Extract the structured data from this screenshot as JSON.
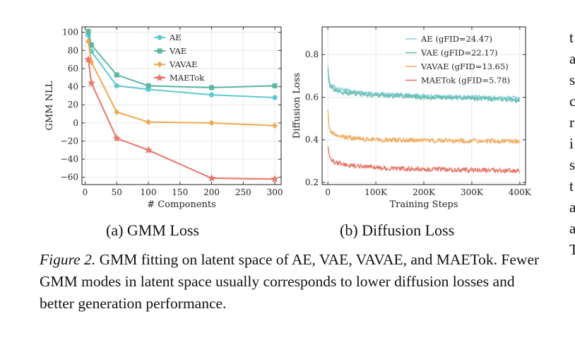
{
  "chart_data": [
    {
      "type": "line",
      "xlabel": "# Components",
      "ylabel": "GMM NLL",
      "xlim": [
        -5,
        310
      ],
      "ylim": [
        -68,
        106
      ],
      "xticks": [
        0,
        50,
        100,
        150,
        200,
        250,
        300
      ],
      "yticks": [
        -60,
        -40,
        -20,
        0,
        20,
        40,
        60,
        80,
        100
      ],
      "grid": true,
      "legend_position": "top-right",
      "series": [
        {
          "name": "AE",
          "color": "#5fc9d1",
          "marker": "circle",
          "x": [
            5,
            10,
            50,
            100,
            200,
            300
          ],
          "y": [
            97,
            79,
            41,
            37,
            31,
            28
          ]
        },
        {
          "name": "VAE",
          "color": "#5bb5a2",
          "marker": "square",
          "x": [
            5,
            10,
            50,
            100,
            200,
            300
          ],
          "y": [
            101,
            86,
            53,
            41,
            39,
            41
          ]
        },
        {
          "name": "VAVAE",
          "color": "#f0a94e",
          "marker": "diamond",
          "x": [
            5,
            10,
            50,
            100,
            200,
            300
          ],
          "y": [
            90,
            67,
            12,
            1,
            0,
            -3
          ]
        },
        {
          "name": "MAETok",
          "color": "#e8766a",
          "marker": "star",
          "x": [
            5,
            10,
            50,
            100,
            200,
            300
          ],
          "y": [
            70,
            44,
            -17,
            -30,
            -61,
            -62
          ]
        }
      ]
    },
    {
      "type": "line",
      "xlabel": "Training Steps",
      "ylabel": "Diffusion Loss",
      "xlim": [
        -12000,
        412000
      ],
      "ylim": [
        0.19,
        0.93
      ],
      "xticks": [
        0,
        100000,
        200000,
        300000,
        400000
      ],
      "xtick_labels": [
        "0",
        "100K",
        "200K",
        "300K",
        "400K"
      ],
      "yticks": [
        0.2,
        0.4,
        0.6,
        0.8
      ],
      "ytick_labels": [
        "0.2",
        "0.4",
        "0.6",
        "0.8"
      ],
      "grid": true,
      "legend_position": "top-right",
      "series": [
        {
          "name": "AE (gFID=24.47)",
          "color": "#87d2e3",
          "x": [
            0,
            2000,
            5000,
            10000,
            20000,
            40000,
            70000,
            100000,
            150000,
            200000,
            250000,
            300000,
            350000,
            400000
          ],
          "y": [
            0.76,
            0.69,
            0.66,
            0.65,
            0.64,
            0.63,
            0.62,
            0.615,
            0.61,
            0.605,
            0.6,
            0.6,
            0.598,
            0.595
          ]
        },
        {
          "name": "VAE (gFID=22.17)",
          "color": "#6cbfb2",
          "x": [
            0,
            2000,
            5000,
            10000,
            20000,
            40000,
            70000,
            100000,
            150000,
            200000,
            250000,
            300000,
            350000,
            400000
          ],
          "y": [
            0.74,
            0.68,
            0.65,
            0.64,
            0.63,
            0.62,
            0.615,
            0.61,
            0.605,
            0.6,
            0.598,
            0.595,
            0.59,
            0.585
          ]
        },
        {
          "name": "VAVAE (gFID=13.65)",
          "color": "#efae63",
          "x": [
            0,
            2000,
            5000,
            10000,
            20000,
            40000,
            70000,
            100000,
            150000,
            200000,
            250000,
            300000,
            350000,
            400000
          ],
          "y": [
            0.55,
            0.47,
            0.44,
            0.43,
            0.42,
            0.41,
            0.405,
            0.4,
            0.4,
            0.398,
            0.396,
            0.395,
            0.394,
            0.393
          ]
        },
        {
          "name": "MAETok (gFID=5.78)",
          "color": "#e57565",
          "x": [
            0,
            2000,
            5000,
            10000,
            20000,
            40000,
            70000,
            100000,
            150000,
            200000,
            250000,
            300000,
            350000,
            400000
          ],
          "y": [
            0.38,
            0.33,
            0.31,
            0.3,
            0.29,
            0.28,
            0.275,
            0.27,
            0.265,
            0.262,
            0.26,
            0.258,
            0.256,
            0.255
          ]
        }
      ]
    }
  ],
  "subcaptions": {
    "a": "(a) GMM Loss",
    "b": "(b) Diffusion Loss"
  },
  "caption": {
    "figure_label": "Figure 2.",
    "text": " GMM fitting on latent space of AE, VAE, VAVAE, and MAETok. Fewer GMM modes in latent space usually corresponds to lower diffusion losses and better generation performance."
  },
  "margin_letters": [
    "t",
    "a",
    "s",
    "c",
    "r",
    "i",
    "s",
    "t",
    "a",
    "a",
    "T"
  ]
}
